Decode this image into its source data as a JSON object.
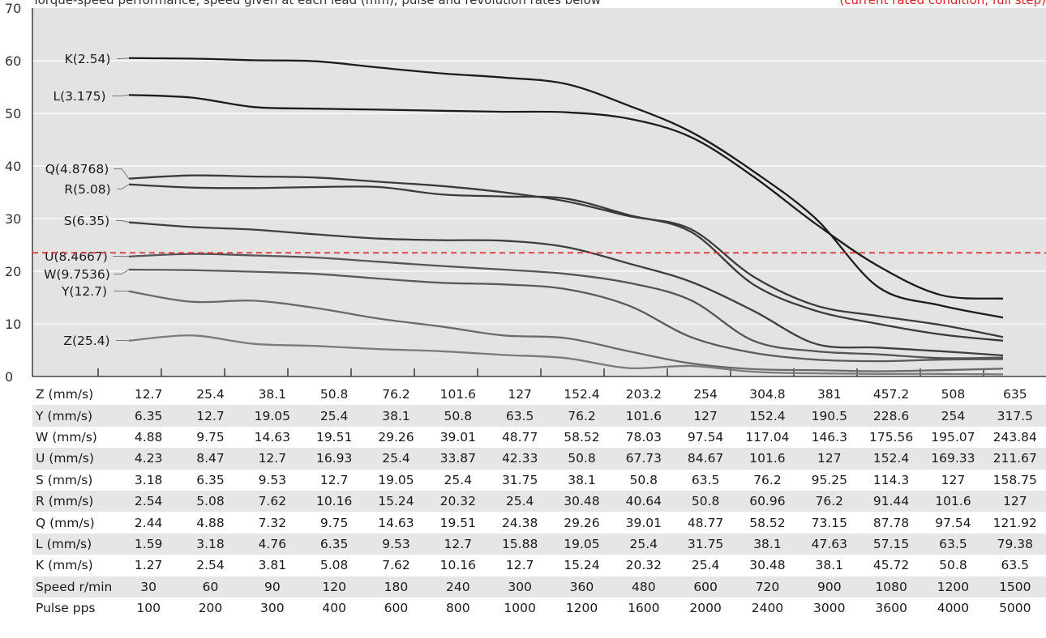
{
  "header": {
    "left_text": "Torque-speed performance, speed given at each lead (mm), pulse and revolution rates below",
    "right_text": "(current rated condition, full step)"
  },
  "chart_data": {
    "type": "line",
    "ylim": [
      0,
      70
    ],
    "yticks": [
      0,
      10,
      20,
      30,
      40,
      50,
      60,
      70
    ],
    "x_positions": 15,
    "grid": true,
    "reference_line": {
      "y": 23.5,
      "color": "#e23030",
      "style": "dashed"
    },
    "series": [
      {
        "name": "K(2.54)",
        "color": "#1c1c1c",
        "values": [
          60.5,
          60.4,
          60.1,
          59.9,
          58.7,
          57.6,
          56.8,
          55.6,
          51.5,
          46.5,
          39.0,
          30.0,
          17.0,
          13.5,
          11.2
        ]
      },
      {
        "name": "L(3.175)",
        "color": "#1c1c1c",
        "values": [
          53.5,
          53.0,
          51.2,
          50.9,
          50.7,
          50.5,
          50.3,
          50.2,
          49.0,
          45.5,
          38.0,
          29.0,
          21.0,
          15.5,
          14.8
        ]
      },
      {
        "name": "Q(4.8768)",
        "color": "#3a3a3a",
        "values": [
          37.6,
          38.2,
          38.0,
          37.8,
          37.0,
          36.2,
          35.0,
          33.3,
          30.5,
          28.0,
          19.0,
          13.5,
          11.5,
          9.8,
          7.5
        ]
      },
      {
        "name": "R(5.08)",
        "color": "#3a3a3a",
        "values": [
          36.5,
          35.9,
          35.8,
          36.0,
          36.0,
          34.6,
          34.2,
          33.8,
          30.7,
          27.5,
          17.5,
          12.5,
          10.0,
          8.0,
          6.8
        ]
      },
      {
        "name": "S(6.35)",
        "color": "#3e3e3e",
        "values": [
          29.3,
          28.4,
          27.9,
          27.0,
          26.2,
          25.9,
          25.8,
          24.6,
          21.5,
          18.0,
          12.5,
          6.2,
          5.5,
          4.8,
          4.0
        ]
      },
      {
        "name": "U(8.4667)",
        "color": "#545454",
        "values": [
          22.8,
          23.3,
          23.0,
          22.6,
          21.8,
          21.0,
          20.3,
          19.5,
          17.8,
          14.5,
          6.8,
          4.8,
          4.2,
          3.5,
          3.6
        ]
      },
      {
        "name": "W(9.7536)",
        "color": "#5a5a5a",
        "values": [
          20.3,
          20.2,
          19.9,
          19.5,
          18.6,
          17.8,
          17.5,
          16.6,
          13.5,
          7.5,
          4.5,
          3.2,
          2.9,
          3.2,
          3.3
        ]
      },
      {
        "name": "Y(12.7)",
        "color": "#6a6a6a",
        "values": [
          16.2,
          14.2,
          14.4,
          13.0,
          11.0,
          9.5,
          7.8,
          7.3,
          4.8,
          2.5,
          1.4,
          1.2,
          1.0,
          1.2,
          1.5
        ]
      },
      {
        "name": "Z(25.4)",
        "color": "#7a7a7a",
        "values": [
          6.8,
          7.8,
          6.2,
          5.8,
          5.2,
          4.8,
          4.1,
          3.5,
          1.6,
          2.0,
          0.9,
          0.6,
          0.5,
          0.5,
          0.4
        ]
      }
    ]
  },
  "table": {
    "rows": [
      {
        "label": "Z (mm/s)",
        "values": [
          "12.7",
          "25.4",
          "38.1",
          "50.8",
          "76.2",
          "101.6",
          "127",
          "152.4",
          "203.2",
          "254",
          "304.8",
          "381",
          "457.2",
          "508",
          "635"
        ]
      },
      {
        "label": "Y (mm/s)",
        "values": [
          "6.35",
          "12.7",
          "19.05",
          "25.4",
          "38.1",
          "50.8",
          "63.5",
          "76.2",
          "101.6",
          "127",
          "152.4",
          "190.5",
          "228.6",
          "254",
          "317.5"
        ]
      },
      {
        "label": "W (mm/s)",
        "values": [
          "4.88",
          "9.75",
          "14.63",
          "19.51",
          "29.26",
          "39.01",
          "48.77",
          "58.52",
          "78.03",
          "97.54",
          "117.04",
          "146.3",
          "175.56",
          "195.07",
          "243.84"
        ]
      },
      {
        "label": "U (mm/s)",
        "values": [
          "4.23",
          "8.47",
          "12.7",
          "16.93",
          "25.4",
          "33.87",
          "42.33",
          "50.8",
          "67.73",
          "84.67",
          "101.6",
          "127",
          "152.4",
          "169.33",
          "211.67"
        ]
      },
      {
        "label": "S (mm/s)",
        "values": [
          "3.18",
          "6.35",
          "9.53",
          "12.7",
          "19.05",
          "25.4",
          "31.75",
          "38.1",
          "50.8",
          "63.5",
          "76.2",
          "95.25",
          "114.3",
          "127",
          "158.75"
        ]
      },
      {
        "label": "R (mm/s)",
        "values": [
          "2.54",
          "5.08",
          "7.62",
          "10.16",
          "15.24",
          "20.32",
          "25.4",
          "30.48",
          "40.64",
          "50.8",
          "60.96",
          "76.2",
          "91.44",
          "101.6",
          "127"
        ]
      },
      {
        "label": "Q (mm/s)",
        "values": [
          "2.44",
          "4.88",
          "7.32",
          "9.75",
          "14.63",
          "19.51",
          "24.38",
          "29.26",
          "39.01",
          "48.77",
          "58.52",
          "73.15",
          "87.78",
          "97.54",
          "121.92"
        ]
      },
      {
        "label": "L (mm/s)",
        "values": [
          "1.59",
          "3.18",
          "4.76",
          "6.35",
          "9.53",
          "12.7",
          "15.88",
          "19.05",
          "25.4",
          "31.75",
          "38.1",
          "47.63",
          "57.15",
          "63.5",
          "79.38"
        ]
      },
      {
        "label": "K (mm/s)",
        "values": [
          "1.27",
          "2.54",
          "3.81",
          "5.08",
          "7.62",
          "10.16",
          "12.7",
          "15.24",
          "20.32",
          "25.4",
          "30.48",
          "38.1",
          "45.72",
          "50.8",
          "63.5"
        ]
      },
      {
        "label": "Speed  r/min",
        "values": [
          "30",
          "60",
          "90",
          "120",
          "180",
          "240",
          "300",
          "360",
          "480",
          "600",
          "720",
          "900",
          "1080",
          "1200",
          "1500"
        ]
      },
      {
        "label": "Pulse   pps",
        "values": [
          "100",
          "200",
          "300",
          "400",
          "600",
          "800",
          "1000",
          "1200",
          "1600",
          "2000",
          "2400",
          "3000",
          "3600",
          "4000",
          "5000"
        ]
      }
    ]
  }
}
